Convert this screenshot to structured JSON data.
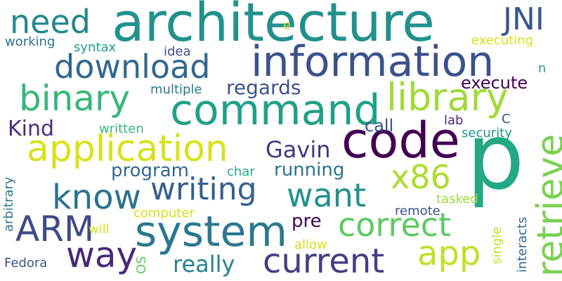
{
  "words": [
    {
      "text": "p",
      "color": "#22a884"
    },
    {
      "text": "architecture",
      "color": "#21918c"
    },
    {
      "text": "code",
      "color": "#440154"
    },
    {
      "text": "command",
      "color": "#1fa187"
    },
    {
      "text": "information",
      "color": "#3b528b"
    },
    {
      "text": "system",
      "color": "#2a788e"
    },
    {
      "text": "application",
      "color": "#d8e219"
    },
    {
      "text": "retrieve",
      "color": "#7ad151"
    },
    {
      "text": "writing",
      "color": "#355f8d"
    },
    {
      "text": "download",
      "color": "#31688e"
    },
    {
      "text": "library",
      "color": "#a0da39"
    },
    {
      "text": "binary",
      "color": "#35b779"
    },
    {
      "text": "current",
      "color": "#433e85"
    },
    {
      "text": "know",
      "color": "#2c728e"
    },
    {
      "text": "correct",
      "color": "#5ec962"
    },
    {
      "text": "want",
      "color": "#21918c"
    },
    {
      "text": "ARM",
      "color": "#3e4a89"
    },
    {
      "text": "way",
      "color": "#482878"
    },
    {
      "text": "app",
      "color": "#c2df23"
    },
    {
      "text": "x86",
      "color": "#addc30"
    },
    {
      "text": "need",
      "color": "#23898e"
    },
    {
      "text": "JNI",
      "color": "#39568c"
    },
    {
      "text": "really",
      "color": "#26828e"
    },
    {
      "text": "Gavin",
      "color": "#453781"
    },
    {
      "text": "regards",
      "color": "#3b528b"
    },
    {
      "text": "execute",
      "color": "#440154"
    },
    {
      "text": "Kind",
      "color": "#472d7b"
    },
    {
      "text": "program",
      "color": "#31688e"
    },
    {
      "text": "running",
      "color": "#2c728e"
    },
    {
      "text": "pre",
      "color": "#440154"
    },
    {
      "text": "call",
      "color": "#3b528b"
    },
    {
      "text": "multiple",
      "color": "#2a788e"
    },
    {
      "text": "written",
      "color": "#35b779"
    },
    {
      "text": "security",
      "color": "#21918c"
    },
    {
      "text": "lab",
      "color": "#482878"
    },
    {
      "text": "C",
      "color": "#3b528b"
    },
    {
      "text": "char",
      "color": "#22a884"
    },
    {
      "text": "executing",
      "color": "#d8e219"
    },
    {
      "text": "working",
      "color": "#2c728e"
    },
    {
      "text": "syntax",
      "color": "#1fa187"
    },
    {
      "text": "idea",
      "color": "#3e4a89"
    },
    {
      "text": "e",
      "color": "#c2df23"
    },
    {
      "text": "n",
      "color": "#1fa187"
    },
    {
      "text": "computer",
      "color": "#d8e219"
    },
    {
      "text": "tasked",
      "color": "#a0da39"
    },
    {
      "text": "remote",
      "color": "#3b528b"
    },
    {
      "text": "will",
      "color": "#d8e219"
    },
    {
      "text": "allow",
      "color": "#d8e219"
    },
    {
      "text": "Fedora",
      "color": "#3b528b"
    },
    {
      "text": "OS",
      "color": "#5ec962"
    },
    {
      "text": "arbitrary",
      "color": "#2a788e"
    },
    {
      "text": "interacts",
      "color": "#31688e"
    },
    {
      "text": "single",
      "color": "#c2df23"
    }
  ]
}
